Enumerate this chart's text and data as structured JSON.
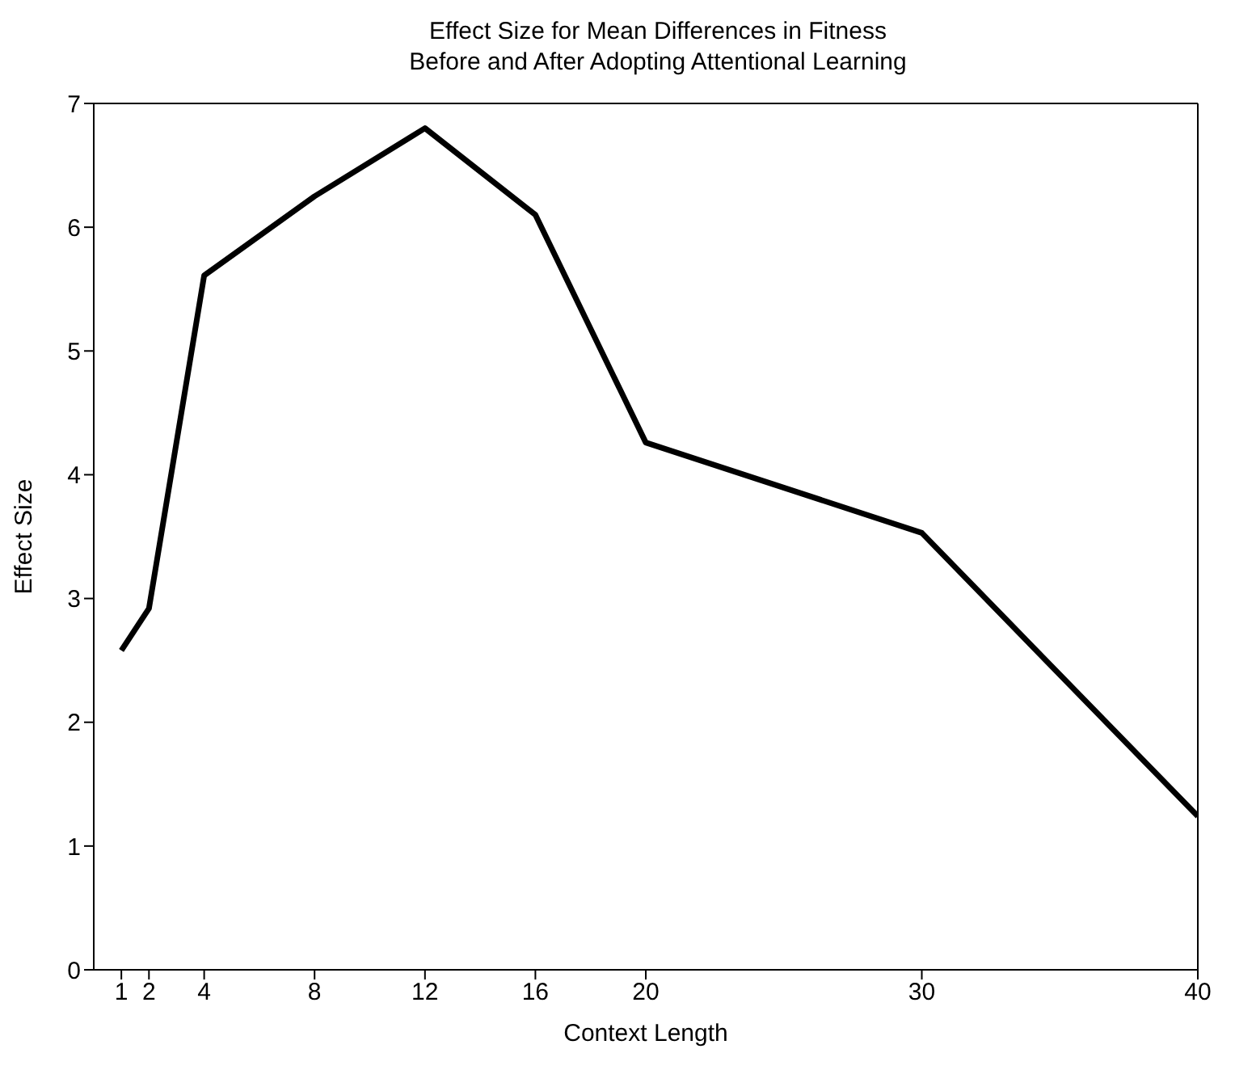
{
  "chart_data": {
    "type": "line",
    "title": "Effect Size for Mean Differences in Fitness\nBefore and After Adopting Attentional Learning",
    "xlabel": "Context Length",
    "ylabel": "Effect Size",
    "x": [
      1,
      2,
      4,
      8,
      12,
      16,
      20,
      30,
      40
    ],
    "series": [
      {
        "color": "#000000",
        "values": [
          2.58,
          2.92,
          5.61,
          6.25,
          6.8,
          6.1,
          4.26,
          3.53,
          1.24
        ]
      }
    ],
    "xlim": [
      0,
      40
    ],
    "xticks": [
      1,
      2,
      4,
      8,
      12,
      16,
      20,
      30,
      40
    ],
    "ylim": [
      0,
      7
    ],
    "yticks": [
      0,
      1,
      2,
      3,
      4,
      5,
      6,
      7
    ],
    "marker": "none",
    "line_style": "solid"
  }
}
